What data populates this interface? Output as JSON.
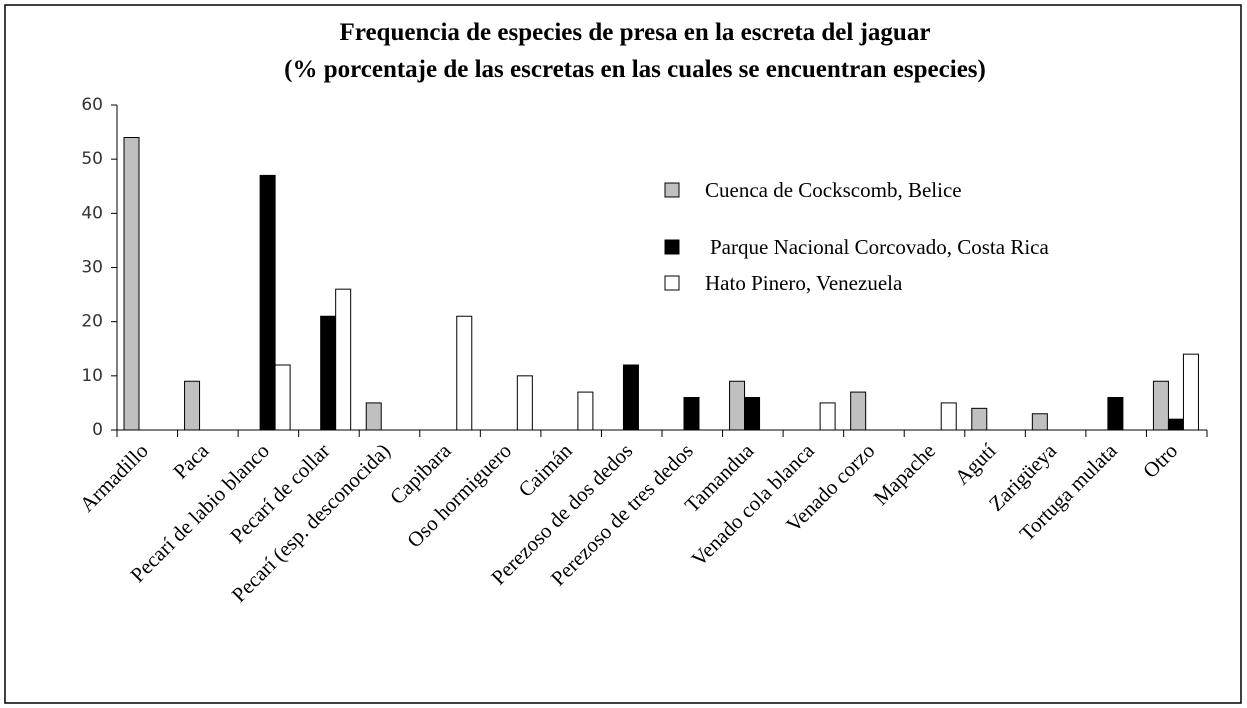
{
  "chart_data": {
    "type": "bar",
    "title": "Frequencia de especies de presa en la escreta del jaguar",
    "subtitle": "(% porcentaje de las escretas en las cuales se encuentran especies)",
    "categories": [
      "Armadillo",
      "Paca",
      "Pecarí de labio blanco",
      "Pecarí de collar",
      "Pecarí (esp. desconocida)",
      "Capibara",
      "Oso hormiguero",
      "Caimán",
      "Perezoso de dos dedos",
      "Perezoso de tres dedos",
      "Tamandua",
      "Venado cola blanca",
      "Venado corzo",
      "Mapache",
      "Agutí",
      "Zarigüeya",
      "Tortuga mulata",
      "Otro"
    ],
    "series": [
      {
        "name": "Cuenca de Cockscomb, Belice",
        "color": "#c0c0c0",
        "values": [
          54,
          9,
          0,
          0,
          5,
          0,
          0,
          0,
          0,
          0,
          9,
          0,
          7,
          0,
          4,
          3,
          0,
          9
        ]
      },
      {
        "name": "Parque Nacional Corcovado, Costa Rica",
        "color": "#000000",
        "values": [
          0,
          0,
          47,
          21,
          0,
          0,
          0,
          0,
          12,
          6,
          6,
          0,
          0,
          0,
          0,
          0,
          6,
          2
        ]
      },
      {
        "name": "Hato Pinero, Venezuela",
        "color": "#ffffff",
        "values": [
          0,
          0,
          12,
          26,
          0,
          21,
          10,
          7,
          0,
          0,
          0,
          5,
          0,
          5,
          0,
          0,
          0,
          14
        ]
      }
    ],
    "ylim": [
      0,
      60
    ],
    "yticks": [
      0,
      10,
      20,
      30,
      40,
      50,
      60
    ],
    "grid": false,
    "legend": "upper right"
  }
}
